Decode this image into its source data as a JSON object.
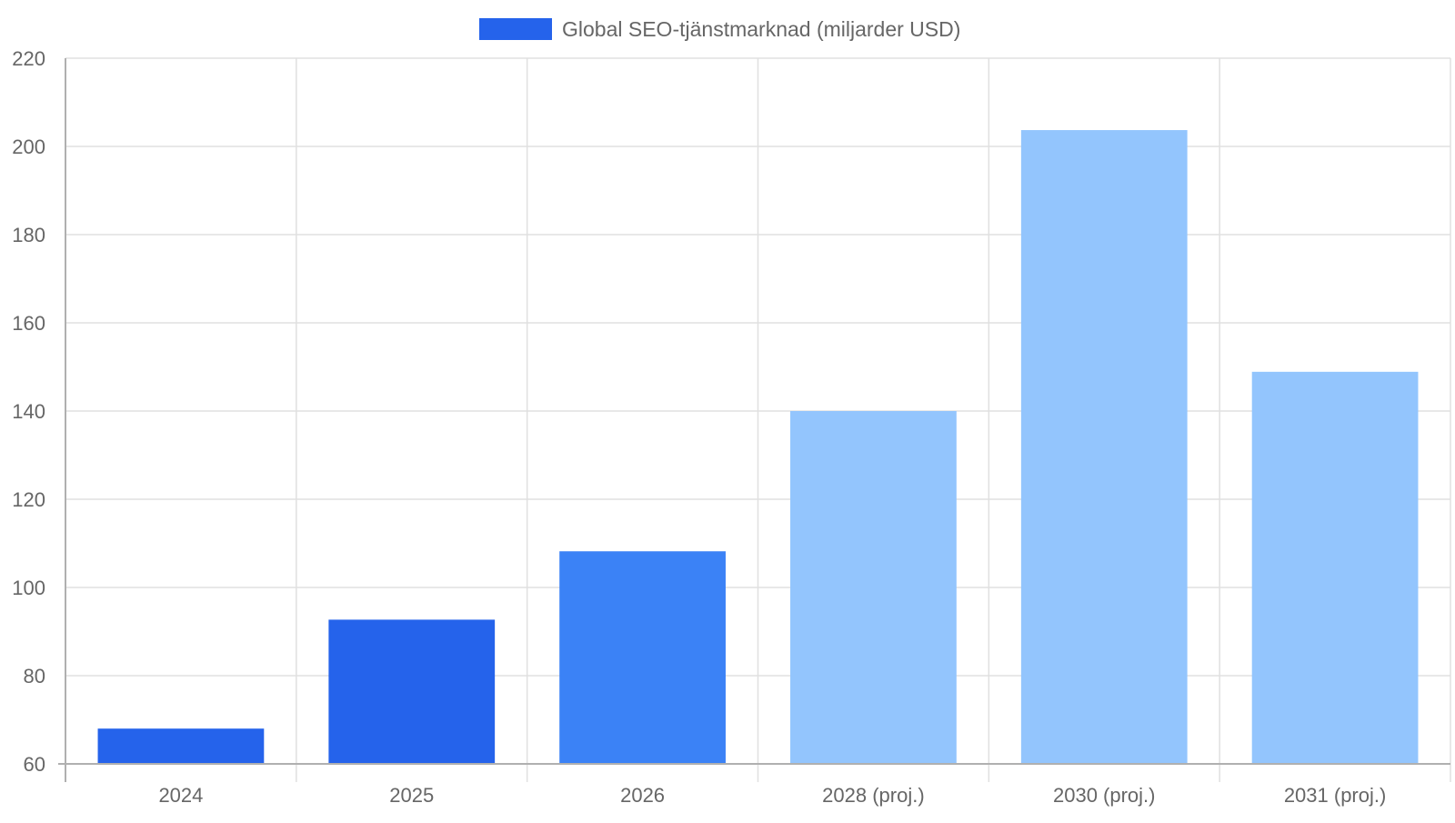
{
  "chart_data": {
    "type": "bar",
    "categories": [
      "2024",
      "2025",
      "2026",
      "2028 (proj.)",
      "2030 (proj.)",
      "2031 (proj.)"
    ],
    "series": [
      {
        "name": "Global SEO-tjänstmarknad (miljarder USD)",
        "values": [
          68,
          92.7,
          108.2,
          140,
          203.7,
          148.9
        ],
        "colors": [
          "#2563EB",
          "#2563EB",
          "#3B82F6",
          "#93C5FD",
          "#93C5FD",
          "#93C5FD"
        ]
      }
    ],
    "legend": {
      "label": "Global SEO-tjänstmarknad (miljarder USD)",
      "swatch_color": "#2563EB",
      "position": "top-center"
    },
    "title": "",
    "xlabel": "",
    "ylabel": "",
    "ylim": [
      60,
      220
    ],
    "y_ticks": [
      "60",
      "80",
      "100",
      "120",
      "140",
      "160",
      "180",
      "200",
      "220"
    ],
    "grid": true,
    "colors": {
      "grid": "#E0E0E0",
      "axis": "#B0B0B0",
      "text": "#666666"
    }
  }
}
